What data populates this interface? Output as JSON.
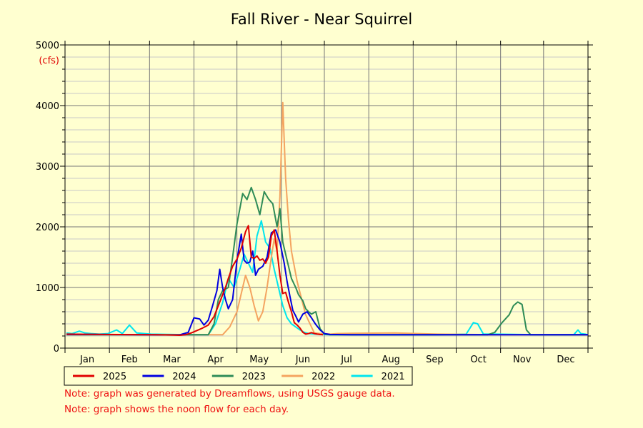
{
  "chart_data": {
    "type": "line",
    "title": "Fall River - Near Squirrel",
    "ylabel": "(cfs)",
    "xlabel": "",
    "ylim": [
      0,
      5000
    ],
    "yticks": [
      0,
      1000,
      2000,
      3000,
      4000,
      5000
    ],
    "xlim": [
      0,
      365
    ],
    "months": [
      "Jan",
      "Feb",
      "Mar",
      "Apr",
      "May",
      "Jun",
      "Jul",
      "Aug",
      "Sep",
      "Oct",
      "Nov",
      "Dec"
    ],
    "grid": true,
    "legend_position": "bottom",
    "series": [
      {
        "name": "2025",
        "color": "#e00000",
        "x": [
          1,
          15,
          30,
          46,
          60,
          70,
          76,
          80,
          84,
          88,
          92,
          96,
          100,
          104,
          108,
          112,
          114,
          117,
          120,
          123,
          126,
          128,
          130,
          132,
          134,
          136,
          138,
          140,
          142,
          144,
          146,
          148,
          150,
          152,
          154,
          156,
          158,
          160,
          162,
          164,
          166,
          168,
          170,
          172,
          174,
          176,
          178,
          180
        ],
        "y": [
          230,
          228,
          225,
          222,
          220,
          218,
          215,
          212,
          220,
          250,
          290,
          330,
          380,
          520,
          760,
          1000,
          1150,
          1350,
          1470,
          1650,
          1920,
          2020,
          1500,
          1480,
          1520,
          1450,
          1470,
          1400,
          1500,
          1850,
          1950,
          1600,
          1200,
          900,
          920,
          750,
          600,
          420,
          380,
          330,
          260,
          230,
          240,
          255,
          240,
          230,
          225,
          220
        ]
      },
      {
        "name": "2024",
        "color": "#0000e0",
        "x": [
          1,
          15,
          30,
          46,
          60,
          70,
          80,
          86,
          90,
          94,
          97,
          100,
          103,
          106,
          108,
          110,
          112,
          114,
          117,
          120,
          123,
          125,
          127,
          129,
          131,
          133,
          135,
          138,
          141,
          144,
          147,
          150,
          153,
          155,
          157,
          159,
          161,
          163,
          166,
          169,
          172,
          175,
          178,
          181,
          185,
          200,
          250,
          300,
          365
        ],
        "y": [
          225,
          225,
          224,
          222,
          220,
          218,
          218,
          260,
          500,
          480,
          380,
          460,
          700,
          950,
          1300,
          1000,
          800,
          650,
          800,
          1450,
          1880,
          1450,
          1400,
          1420,
          1600,
          1200,
          1300,
          1350,
          1500,
          1900,
          1950,
          1750,
          1400,
          1100,
          850,
          620,
          530,
          430,
          560,
          600,
          500,
          390,
          300,
          240,
          225,
          220,
          220,
          220,
          220
        ]
      },
      {
        "name": "2023",
        "color": "#2e8b57",
        "x": [
          1,
          30,
          60,
          90,
          100,
          104,
          107,
          110,
          114,
          117,
          120,
          124,
          127,
          130,
          133,
          136,
          139,
          142,
          145,
          148,
          150,
          152,
          155,
          158,
          161,
          163,
          166,
          168,
          170,
          172,
          175,
          178,
          181,
          183,
          185,
          200,
          250,
          295,
          300,
          305,
          310,
          313,
          316,
          319,
          322,
          325,
          330,
          365
        ],
        "y": [
          220,
          220,
          220,
          220,
          220,
          400,
          800,
          950,
          1000,
          1500,
          2050,
          2550,
          2450,
          2650,
          2450,
          2200,
          2580,
          2460,
          2380,
          2000,
          2300,
          1750,
          1450,
          1150,
          1000,
          880,
          780,
          650,
          600,
          560,
          600,
          320,
          230,
          225,
          220,
          220,
          220,
          220,
          260,
          420,
          550,
          700,
          760,
          720,
          300,
          220,
          220,
          220
        ]
      },
      {
        "name": "2022",
        "color": "#f4a460",
        "x": [
          1,
          30,
          60,
          90,
          110,
          115,
          120,
          123,
          126,
          129,
          132,
          135,
          138,
          141,
          144,
          146,
          148,
          150,
          152,
          154,
          156,
          158,
          160,
          162,
          165,
          168,
          171,
          174,
          178,
          182,
          185,
          190,
          200,
          230,
          260,
          300,
          365
        ],
        "y": [
          220,
          220,
          220,
          220,
          220,
          350,
          600,
          900,
          1200,
          1000,
          700,
          450,
          600,
          1000,
          1500,
          1800,
          1600,
          2500,
          4050,
          2800,
          2100,
          1600,
          1350,
          1100,
          820,
          550,
          400,
          250,
          240,
          235,
          230,
          240,
          245,
          250,
          230,
          220,
          220
        ]
      },
      {
        "name": "2021",
        "color": "#00e5ee",
        "x": [
          1,
          5,
          10,
          14,
          18,
          24,
          30,
          36,
          40,
          45,
          50,
          60,
          75,
          90,
          100,
          105,
          110,
          114,
          118,
          122,
          125,
          128,
          131,
          134,
          137,
          140,
          143,
          146,
          149,
          152,
          155,
          158,
          161,
          164,
          167,
          170,
          175,
          180,
          185,
          200,
          230,
          260,
          280,
          285,
          288,
          292,
          300,
          330,
          355,
          358,
          360,
          363,
          365
        ],
        "y": [
          250,
          240,
          280,
          250,
          240,
          230,
          240,
          300,
          240,
          380,
          250,
          230,
          225,
          220,
          220,
          400,
          750,
          1150,
          1000,
          1300,
          1550,
          1400,
          1250,
          1850,
          2100,
          1750,
          1650,
          1300,
          1000,
          700,
          500,
          400,
          350,
          300,
          260,
          240,
          230,
          225,
          220,
          220,
          220,
          220,
          230,
          420,
          400,
          230,
          230,
          220,
          220,
          300,
          240,
          230,
          220
        ]
      }
    ]
  },
  "notes": [
    "Note: graph was generated by Dreamflows, using USGS gauge data.",
    "Note: graph shows the noon flow for each day."
  ]
}
